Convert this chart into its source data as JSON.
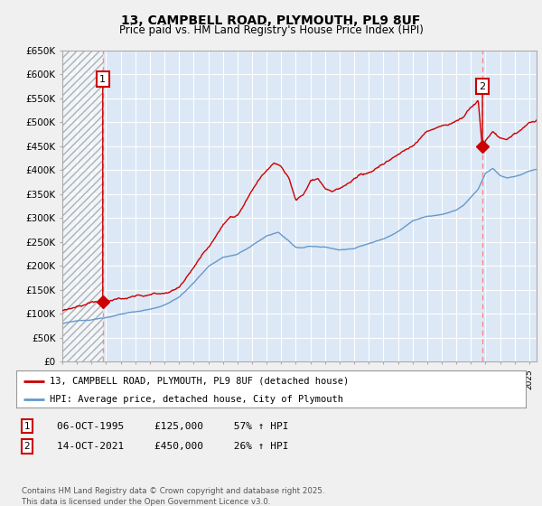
{
  "title": "13, CAMPBELL ROAD, PLYMOUTH, PL9 8UF",
  "subtitle": "Price paid vs. HM Land Registry's House Price Index (HPI)",
  "ylim": [
    0,
    650000
  ],
  "yticks": [
    0,
    50000,
    100000,
    150000,
    200000,
    250000,
    300000,
    350000,
    400000,
    450000,
    500000,
    550000,
    600000,
    650000
  ],
  "ytick_labels": [
    "£0",
    "£50K",
    "£100K",
    "£150K",
    "£200K",
    "£250K",
    "£300K",
    "£350K",
    "£400K",
    "£450K",
    "£500K",
    "£550K",
    "£600K",
    "£650K"
  ],
  "bg_color": "#f0f0f0",
  "plot_bg_color": "#dce8f5",
  "grid_color": "#ffffff",
  "sale1_date_num": 1995.77,
  "sale1_price": 125000,
  "sale2_date_num": 2021.79,
  "sale2_price": 450000,
  "legend_label_red": "13, CAMPBELL ROAD, PLYMOUTH, PL9 8UF (detached house)",
  "legend_label_blue": "HPI: Average price, detached house, City of Plymouth",
  "annotation1_text": "06-OCT-1995     £125,000     57% ↑ HPI",
  "annotation2_text": "14-OCT-2021     £450,000     26% ↑ HPI",
  "footer": "Contains HM Land Registry data © Crown copyright and database right 2025.\nThis data is licensed under the Open Government Licence v3.0.",
  "line_color_red": "#cc0000",
  "line_color_blue": "#6699cc",
  "vline_color": "#ff8888",
  "hatch_color": "#b0b0b0",
  "xlim_start": 1993.0,
  "xlim_end": 2025.5
}
